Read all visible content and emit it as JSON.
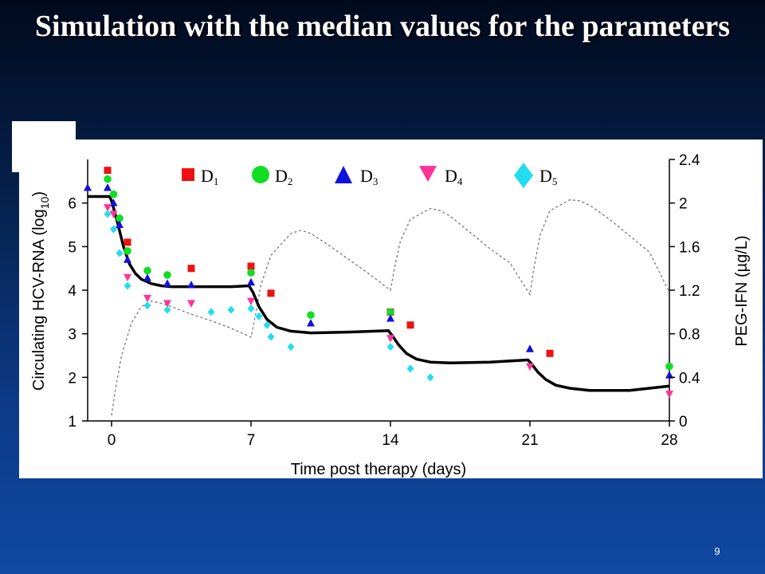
{
  "slide": {
    "title": "Simulation with the median values for the parameters",
    "page_number": "9"
  },
  "colors": {
    "background": "#0c3a86",
    "d1": "#ee1111",
    "d2": "#11dd22",
    "d3": "#1111dd",
    "d4": "#ff3399",
    "d5": "#22ddee"
  },
  "chart_data": {
    "type": "scatter",
    "xlabel": "Time post therapy (days)",
    "ylabel_left": "Circulating HCV-RNA (log10)",
    "ylabel_left_main": "Circulating HCV-RNA (log",
    "ylabel_left_sub": "10",
    "ylabel_left_close": ")",
    "ylabel_right": "PEG-IFN (µg/L)",
    "x_ticks": [
      0,
      7,
      14,
      21,
      28
    ],
    "x_tick_labels": [
      "0",
      "7",
      "14",
      "21",
      "28"
    ],
    "xlim": [
      -1.2,
      28
    ],
    "ylim_left": [
      1,
      7
    ],
    "y_ticks_left": [
      1,
      2,
      3,
      4,
      5,
      6
    ],
    "y_tick_labels_left": [
      "1",
      "2",
      "3",
      "4",
      "5",
      "6"
    ],
    "ylim_right": [
      0,
      2.4
    ],
    "y_ticks_right": [
      0,
      0.4,
      0.8,
      1.2,
      1.6,
      2.0,
      2.4
    ],
    "y_tick_labels_right": [
      "0",
      "0.4",
      "0.8",
      "1.2",
      "1.6",
      "2",
      "2.4"
    ],
    "legend_position": "top",
    "series": [
      {
        "name": "D1",
        "label_main": "D",
        "label_sub": "1",
        "marker": "square",
        "color": "#ee1111",
        "x": [
          -0.2,
          0.8,
          4,
          7,
          8,
          14,
          15,
          22
        ],
        "y": [
          6.75,
          5.1,
          4.5,
          4.55,
          3.93,
          3.5,
          3.2,
          2.55
        ]
      },
      {
        "name": "D2",
        "label_main": "D",
        "label_sub": "2",
        "marker": "circle",
        "color": "#11dd22",
        "x": [
          -0.2,
          0.1,
          0.4,
          0.8,
          1.8,
          2.8,
          7,
          10,
          14,
          28
        ],
        "y": [
          6.55,
          6.2,
          5.65,
          4.9,
          4.45,
          4.35,
          4.4,
          3.43,
          3.5,
          2.25
        ]
      },
      {
        "name": "D3",
        "label_main": "D",
        "label_sub": "3",
        "marker": "triangle-up",
        "color": "#1111dd",
        "x": [
          -1.2,
          -0.2,
          0.1,
          0.4,
          0.8,
          1.8,
          2.8,
          4,
          7,
          10,
          14,
          21,
          28
        ],
        "y": [
          6.35,
          6.35,
          6.0,
          5.5,
          4.7,
          4.28,
          4.15,
          4.12,
          4.18,
          3.24,
          3.35,
          2.65,
          2.05
        ]
      },
      {
        "name": "D4",
        "label_main": "D",
        "label_sub": "4",
        "marker": "triangle-down",
        "color": "#ff3399",
        "x": [
          -0.2,
          0.1,
          0.8,
          1.8,
          2.8,
          4,
          7,
          14,
          21,
          28
        ],
        "y": [
          5.9,
          5.75,
          4.3,
          3.82,
          3.7,
          3.7,
          3.75,
          2.9,
          2.25,
          1.62
        ]
      },
      {
        "name": "D5",
        "label_main": "D",
        "label_sub": "5",
        "marker": "diamond",
        "color": "#22ddee",
        "x": [
          -0.2,
          0.1,
          0.4,
          0.8,
          1.8,
          2.8,
          5,
          6,
          7,
          7.4,
          7.8,
          8,
          9,
          14,
          15,
          16
        ],
        "y": [
          5.75,
          5.4,
          4.85,
          4.1,
          3.65,
          3.55,
          3.5,
          3.55,
          3.58,
          3.4,
          3.2,
          2.93,
          2.7,
          2.7,
          2.2,
          2.0
        ]
      }
    ],
    "model_fit_log10": {
      "x": [
        -1.2,
        -0.1,
        0,
        0.3,
        0.6,
        0.9,
        1.2,
        1.5,
        2,
        2.5,
        3,
        4,
        5,
        6,
        6.9,
        7.1,
        7.4,
        7.8,
        8.3,
        9,
        10,
        12,
        13.9,
        14.1,
        14.4,
        14.8,
        15.3,
        16,
        17,
        19,
        20.9,
        21.1,
        21.4,
        21.8,
        22.3,
        23,
        24,
        25,
        26,
        28
      ],
      "y": [
        6.15,
        6.15,
        6.05,
        5.55,
        5.0,
        4.6,
        4.38,
        4.25,
        4.15,
        4.1,
        4.08,
        4.08,
        4.08,
        4.08,
        4.1,
        3.95,
        3.62,
        3.33,
        3.15,
        3.06,
        3.02,
        3.04,
        3.07,
        2.95,
        2.75,
        2.55,
        2.42,
        2.35,
        2.33,
        2.35,
        2.4,
        2.3,
        2.12,
        1.95,
        1.82,
        1.75,
        1.7,
        1.7,
        1.7,
        1.8
      ]
    },
    "peg_ifn_concentration": {
      "x": [
        0,
        0.2,
        0.5,
        1,
        1.5,
        2,
        2.5,
        3,
        4,
        5,
        6,
        7,
        7.2,
        7.5,
        8,
        9,
        9.5,
        10,
        11,
        12,
        13,
        14,
        14.2,
        14.5,
        15,
        16,
        16.5,
        17,
        18,
        19,
        20,
        21,
        21.2,
        21.5,
        22,
        23,
        23.5,
        24,
        25,
        26,
        27,
        28
      ],
      "y": [
        0.05,
        0.3,
        0.6,
        0.9,
        1.05,
        1.1,
        1.08,
        1.05,
        0.98,
        0.92,
        0.85,
        0.77,
        0.95,
        1.25,
        1.52,
        1.72,
        1.75,
        1.72,
        1.6,
        1.47,
        1.34,
        1.2,
        1.4,
        1.65,
        1.85,
        1.95,
        1.93,
        1.88,
        1.73,
        1.58,
        1.45,
        1.16,
        1.4,
        1.7,
        1.93,
        2.03,
        2.02,
        1.98,
        1.85,
        1.7,
        1.55,
        1.18
      ]
    }
  }
}
